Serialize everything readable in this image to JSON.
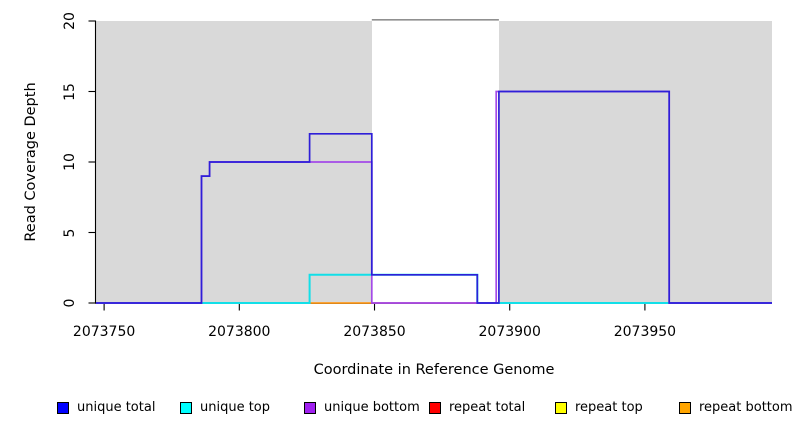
{
  "chart_data": {
    "type": "line",
    "subtype": "step-coverage-plot",
    "title": "",
    "xlabel": "Coordinate in Reference Genome",
    "ylabel": "Read Coverage Depth",
    "xlim": [
      2073747,
      2073997
    ],
    "ylim": [
      0,
      20
    ],
    "x_ticks": [
      2073750,
      2073800,
      2073850,
      2073900,
      2073950
    ],
    "y_ticks": [
      0,
      5,
      10,
      15,
      20
    ],
    "grid": "off",
    "legend_position": "bottom",
    "plot_background_color": "#d9d9d9",
    "repeat_region_white_band": {
      "start": 2073849,
      "end": 2073896,
      "fill": "#ffffff",
      "top_border_color": "#909090"
    },
    "series": [
      {
        "name": "unique total",
        "line_color": "#2e1fd8",
        "legend_color": "#0000ff",
        "render": true,
        "points": [
          [
            2073747,
            0
          ],
          [
            2073786,
            0
          ],
          [
            2073786,
            9
          ],
          [
            2073789,
            9
          ],
          [
            2073789,
            10
          ],
          [
            2073826,
            10
          ],
          [
            2073826,
            12
          ],
          [
            2073849,
            12
          ],
          [
            2073849,
            2
          ],
          [
            2073888,
            2
          ],
          [
            2073888,
            0
          ],
          [
            2073896,
            0
          ],
          [
            2073896,
            15
          ],
          [
            2073959,
            15
          ],
          [
            2073959,
            0
          ],
          [
            2073997,
            0
          ]
        ]
      },
      {
        "name": "unique top",
        "line_color": "#12dfe8",
        "legend_color": "#00ffff",
        "render": true,
        "points": [
          [
            2073747,
            0
          ],
          [
            2073826,
            0
          ],
          [
            2073826,
            2
          ],
          [
            2073888,
            2
          ],
          [
            2073888,
            0
          ],
          [
            2073997,
            0
          ]
        ]
      },
      {
        "name": "unique bottom",
        "line_color": "#a44ae8",
        "legend_color": "#a020f0",
        "render": true,
        "points": [
          [
            2073747,
            0
          ],
          [
            2073786,
            0
          ],
          [
            2073786,
            9
          ],
          [
            2073789,
            9
          ],
          [
            2073789,
            10
          ],
          [
            2073849,
            10
          ],
          [
            2073849,
            0
          ],
          [
            2073895,
            0
          ],
          [
            2073895,
            15
          ],
          [
            2073959,
            15
          ],
          [
            2073959,
            0
          ],
          [
            2073997,
            0
          ]
        ]
      },
      {
        "name": "repeat total",
        "line_color": "#e25c74",
        "legend_color": "#ff0000",
        "render": false,
        "points": [
          [
            2073849,
            0
          ],
          [
            2073888,
            0
          ]
        ]
      },
      {
        "name": "repeat top",
        "line_color": "#8edc8e",
        "legend_color": "#ffff00",
        "render": false,
        "points": [
          [
            2073786,
            0
          ],
          [
            2073826,
            0
          ],
          [
            2073896,
            0
          ],
          [
            2073959,
            0
          ]
        ]
      },
      {
        "name": "repeat bottom",
        "line_color": "#ff9b1e",
        "legend_color": "#ffa500",
        "render": false,
        "points": [
          [
            2073826,
            0
          ],
          [
            2073849,
            0
          ]
        ]
      }
    ],
    "baseline_segments": [
      {
        "x1": 2073786,
        "x2": 2073826,
        "color": "#8edc8e"
      },
      {
        "x1": 2073826,
        "x2": 2073849,
        "color": "#ff9b1e"
      },
      {
        "x1": 2073849,
        "x2": 2073888,
        "color": "#e25c74"
      },
      {
        "x1": 2073896,
        "x2": 2073959,
        "color": "#8edc8e"
      }
    ]
  },
  "legend": {
    "items": [
      {
        "label": "unique total",
        "color": "#0000ff"
      },
      {
        "label": "unique top",
        "color": "#00ffff"
      },
      {
        "label": "unique bottom",
        "color": "#a020f0"
      },
      {
        "label": "repeat total",
        "color": "#ff0000"
      },
      {
        "label": "repeat top",
        "color": "#ffff00"
      },
      {
        "label": "repeat bottom",
        "color": "#ffa500"
      }
    ]
  }
}
